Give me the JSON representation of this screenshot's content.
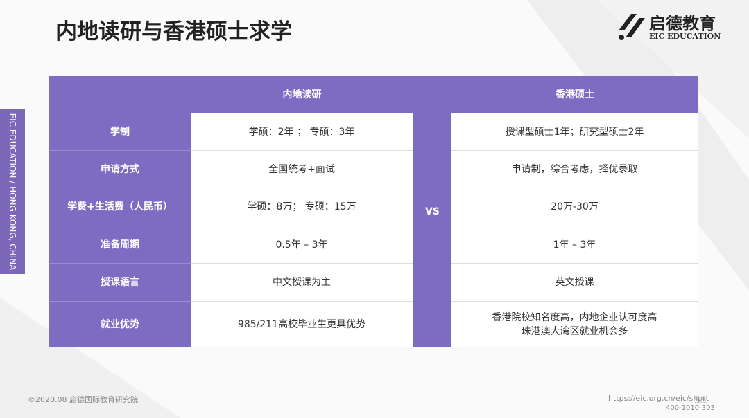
{
  "header": {
    "title": "内地读研与香港硕士求学",
    "logo_cn": "启德教育",
    "logo_en": "EIC EDUCATION"
  },
  "side_label": "EIC EDUCATION / HONG KONG, CHINA",
  "table": {
    "columns": [
      "内地读研",
      "VS",
      "香港硕士"
    ],
    "rows": [
      [
        "学制",
        "学硕：2年 ； 专硕：3年",
        "授课型硕士1年；研究型硕士2年"
      ],
      [
        "申请方式",
        "全国统考+面试",
        "申请制，综合考虑，择优录取"
      ],
      [
        "学费+生活费（人民币）",
        "学硕：8万； 专硕：15万",
        "20万-30万"
      ],
      [
        "准备周期",
        "0.5年 – 3年",
        "1年 – 3年"
      ],
      [
        "授课语言",
        "中文授课为主",
        "英文授课"
      ],
      [
        "就业优势",
        "985/211高校毕业生更具优势",
        [
          "香港院校知名度高，内地企业认可度高",
          "珠港澳大湾区就业机会多"
        ]
      ]
    ]
  },
  "footer": {
    "copyright": "©2020.08 启德国际教育研究院",
    "url": "https://eic.org.cn/eic/short",
    "phone": "400-1010-303",
    "page": "53"
  }
}
